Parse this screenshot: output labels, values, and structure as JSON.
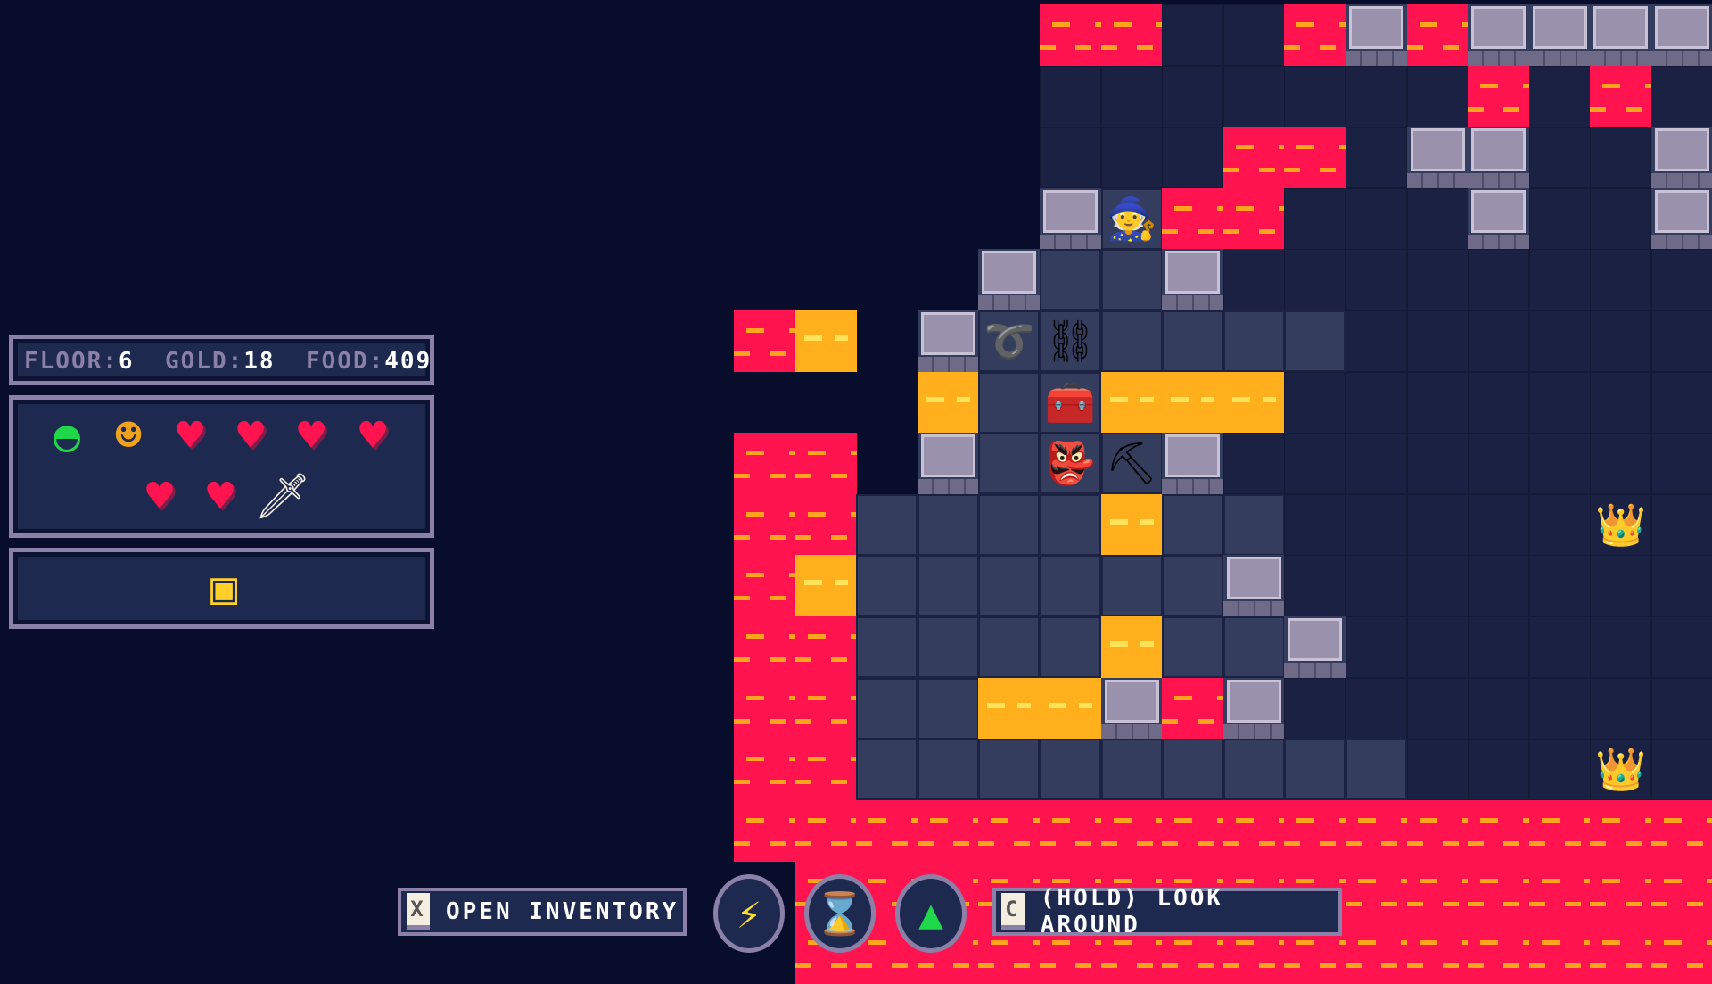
{
  "hud": {
    "floor_label": "FLOOR:",
    "floor_value": "6",
    "gold_label": "GOLD:",
    "gold_value": "18",
    "food_label": "FOOD:",
    "food_value": "409",
    "status_icons": [
      "turtle-shell-icon",
      "goblin-companion-icon",
      "heart-icon",
      "heart-icon",
      "heart-icon",
      "heart-icon",
      "heart-icon",
      "heart-icon",
      "sword-icon"
    ],
    "health_hearts": 6,
    "equipped_item": "chest-icon"
  },
  "controls": {
    "inventory_key": "X",
    "inventory_label": "OPEN INVENTORY",
    "look_key": "C",
    "look_label": "(HOLD) LOOK AROUND",
    "abilities": [
      "lightning-icon",
      "hourglass-icon",
      "cloak-icon"
    ]
  },
  "colors": {
    "background": "#080d2b",
    "lava": "#ff1450",
    "lava_accent": "#ffa41c",
    "panel": "#1e2950",
    "panel_border": "#8b80a8"
  },
  "map": {
    "rows": [
      ".....LLDDLWLWWWW",
      ".....DDDDDDDLDLD",
      ".....DDDLLDWWDDW",
      ".....WFLLDDDWDDW",
      "....WFFWDDDDDDDD",
      "LY.WFFFFFFDDDDDD",
      "...YFFYYYDDDDDDD",
      "LL.WFFFWDDDDDDDD",
      "LLFFFFYFFDDDDDDD",
      "LYFFFFFFWDDDDDDD",
      "LLFFFFYFFWDDDDDD",
      "LLFFYYWLWDDDDDDD",
      "LLFFFFFFFFFDDDDD",
      "LLLLLLLLLLLLLLLL",
      ".LLLLLLLLLLLLLLL",
      ".LLLLLLLLLLLLLLL"
    ],
    "entities": [
      {
        "name": "player-wizard",
        "glyph": "🧙",
        "col": 6,
        "row": 3
      },
      {
        "name": "rope-item",
        "glyph": "➰",
        "col": 4,
        "row": 5
      },
      {
        "name": "chain-item",
        "glyph": "⛓",
        "col": 5,
        "row": 5
      },
      {
        "name": "treasure-chest",
        "glyph": "🧰",
        "col": 5,
        "row": 6
      },
      {
        "name": "goblin-enemy",
        "glyph": "👺",
        "col": 5,
        "row": 7
      },
      {
        "name": "pickaxe-item",
        "glyph": "⛏",
        "col": 6,
        "row": 7
      },
      {
        "name": "spike-trap",
        "glyph": "👑",
        "col": 14,
        "row": 8
      },
      {
        "name": "spike-trap",
        "glyph": "👑",
        "col": 14,
        "row": 12
      }
    ]
  }
}
